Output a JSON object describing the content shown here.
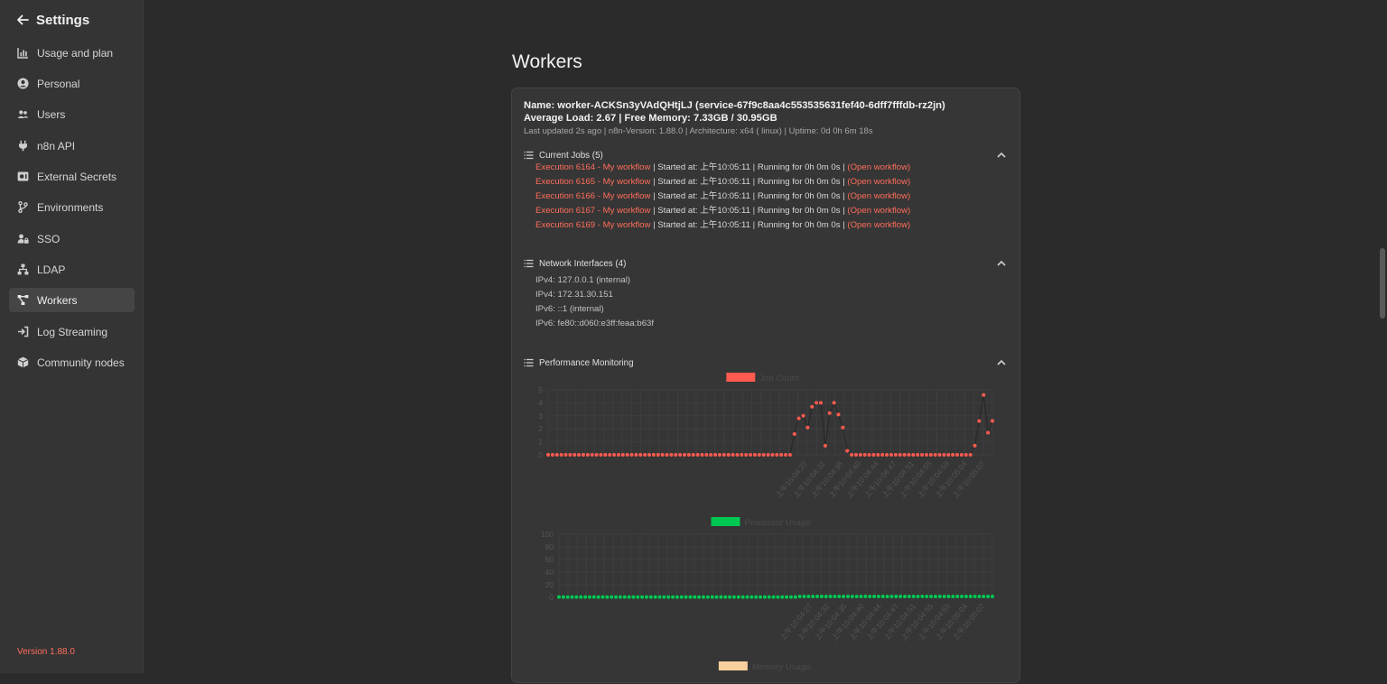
{
  "sidebar": {
    "title": "Settings",
    "items": [
      {
        "label": "Usage and plan",
        "icon": "chart-bar-icon"
      },
      {
        "label": "Personal",
        "icon": "user-circle-icon"
      },
      {
        "label": "Users",
        "icon": "users-icon"
      },
      {
        "label": "n8n API",
        "icon": "plug-icon"
      },
      {
        "label": "External Secrets",
        "icon": "vault-icon"
      },
      {
        "label": "Environments",
        "icon": "code-branch-icon"
      },
      {
        "label": "SSO",
        "icon": "user-lock-icon"
      },
      {
        "label": "LDAP",
        "icon": "network-wired-icon"
      },
      {
        "label": "Workers",
        "icon": "project-diagram-icon",
        "active": true
      },
      {
        "label": "Log Streaming",
        "icon": "sign-in-icon"
      },
      {
        "label": "Community nodes",
        "icon": "cube-icon"
      }
    ],
    "version": "Version 1.88.0"
  },
  "main": {
    "title": "Workers",
    "worker": {
      "name_line": "Name: worker-ACKSn3yVAdQHtjLJ (service-67f9c8aa4c553535631fef40-6dff7fffdb-rz2jn)",
      "load_line": "Average Load: 2.67 | Free Memory: 7.33GB / 30.95GB",
      "meta_line": "Last updated 2s ago | n8n-Version: 1.88.0 | Architecture: x64 ( linux) | Uptime: 0d 0h 6m 18s"
    },
    "jobs_section": {
      "title": "Current Jobs (5)",
      "jobs": [
        {
          "execution": "Execution 6164 - My workflow",
          "started": " | Started at: 上午10:05:11 | Running for 0h 0m 0s | ",
          "open": "(Open workflow)"
        },
        {
          "execution": "Execution 6165 - My workflow",
          "started": " | Started at: 上午10:05:11 | Running for 0h 0m 0s | ",
          "open": "(Open workflow)"
        },
        {
          "execution": "Execution 6166 - My workflow",
          "started": " | Started at: 上午10:05:11 | Running for 0h 0m 0s | ",
          "open": "(Open workflow)"
        },
        {
          "execution": "Execution 6167 - My workflow",
          "started": " | Started at: 上午10:05:11 | Running for 0h 0m 0s | ",
          "open": "(Open workflow)"
        },
        {
          "execution": "Execution 6169 - My workflow",
          "started": " | Started at: 上午10:05:11 | Running for 0h 0m 0s | ",
          "open": "(Open workflow)"
        }
      ]
    },
    "network_section": {
      "title": "Network Interfaces (4)",
      "interfaces": [
        "IPv4: 127.0.0.1 (internal)",
        "IPv4: 172.31.30.151",
        "IPv6: ::1 (internal)",
        "IPv6: fe80::d060:e3ff:feaa:b63f"
      ]
    },
    "perf_section": {
      "title": "Performance Monitoring"
    }
  },
  "colors": {
    "accent": "#ff6d5a",
    "processor": "#00c853",
    "memory": "#f8cf9c"
  },
  "chart_data": [
    {
      "type": "line",
      "title": "",
      "legend": "Job Count",
      "color": "#ff5a4f",
      "ylim": [
        0,
        5
      ],
      "yticks": [
        0,
        1,
        2,
        3,
        4,
        5
      ],
      "xtick_labels": [
        "上午10:04:27",
        "上午10:04:32",
        "上午10:04:35",
        "上午10:04:40",
        "上午10:04:44",
        "上午10:04:47",
        "上午10:04:51",
        "上午10:04:55",
        "上午10:04:59",
        "上午10:05:04",
        "上午10:05:07"
      ],
      "values": [
        0,
        0,
        0,
        0,
        0,
        0,
        0,
        0,
        0,
        0,
        0,
        0,
        0,
        0,
        0,
        0,
        0,
        0,
        0,
        0,
        0,
        0,
        0,
        0,
        0,
        0,
        0,
        0,
        0,
        0,
        0,
        0,
        0,
        0,
        0,
        0,
        0,
        0,
        0,
        0,
        0,
        0,
        0,
        0,
        0,
        0,
        0,
        0,
        0,
        0,
        0,
        0,
        0,
        0,
        0,
        0,
        1.6,
        2.8,
        3,
        2.1,
        3.7,
        4,
        4,
        0.7,
        3.2,
        4,
        3.1,
        2.1,
        0.3,
        0,
        0,
        0,
        0,
        0,
        0,
        0,
        0,
        0,
        0,
        0,
        0,
        0,
        0,
        0,
        0,
        0,
        0,
        0,
        0,
        0,
        0,
        0,
        0,
        0,
        0,
        0,
        0,
        0.7,
        2.6,
        4.6,
        1.7,
        2.6
      ]
    },
    {
      "type": "line",
      "title": "",
      "legend": "Processor Usage",
      "color": "#00c853",
      "ylim": [
        0,
        100
      ],
      "yticks": [
        0,
        20,
        40,
        60,
        80,
        100
      ],
      "xtick_labels": [
        "上午10:04:27",
        "上午10:04:32",
        "上午10:04:35",
        "上午10:04:40",
        "上午10:04:44",
        "上午10:04:47",
        "上午10:04:51",
        "上午10:04:55",
        "上午10:04:59",
        "上午10:05:04",
        "上午10:05:07"
      ],
      "values": [
        0.5,
        0.5,
        0.5,
        0.5,
        0.5,
        0.5,
        0.5,
        0.5,
        0.5,
        0.5,
        0.5,
        0.5,
        0.5,
        0.5,
        0.5,
        0.5,
        0.5,
        0.5,
        0.5,
        0.5,
        0.5,
        0.5,
        0.5,
        0.5,
        0.5,
        0.5,
        0.5,
        0.5,
        0.5,
        0.5,
        0.5,
        0.5,
        0.5,
        0.5,
        0.5,
        0.5,
        0.5,
        0.5,
        0.5,
        0.5,
        0.5,
        0.5,
        0.5,
        0.5,
        0.5,
        0.5,
        0.5,
        0.5,
        0.5,
        0.5,
        0.5,
        0.5,
        0.5,
        0.5,
        0.5,
        1.5,
        1.5,
        1.5,
        1.5,
        1.5,
        1.5,
        1.5,
        1.5,
        1.5,
        1.5,
        1.5,
        1.5,
        1.5,
        1.5,
        1.5,
        1.5,
        1.5,
        1.5,
        1.5,
        1.5,
        1.5,
        1.5,
        1.5,
        1.5,
        1.5,
        1.5,
        1.5,
        1.5,
        1.5,
        1.5,
        1.5,
        1.5,
        1.5,
        1.5,
        1.5,
        1.5,
        1.5,
        1.5,
        1.5,
        1.5,
        1.5,
        1.5,
        1.5,
        1.5,
        1.5
      ]
    },
    {
      "type": "line",
      "title": "",
      "legend": "Memory Usage",
      "color": "#f8cf9c"
    }
  ]
}
